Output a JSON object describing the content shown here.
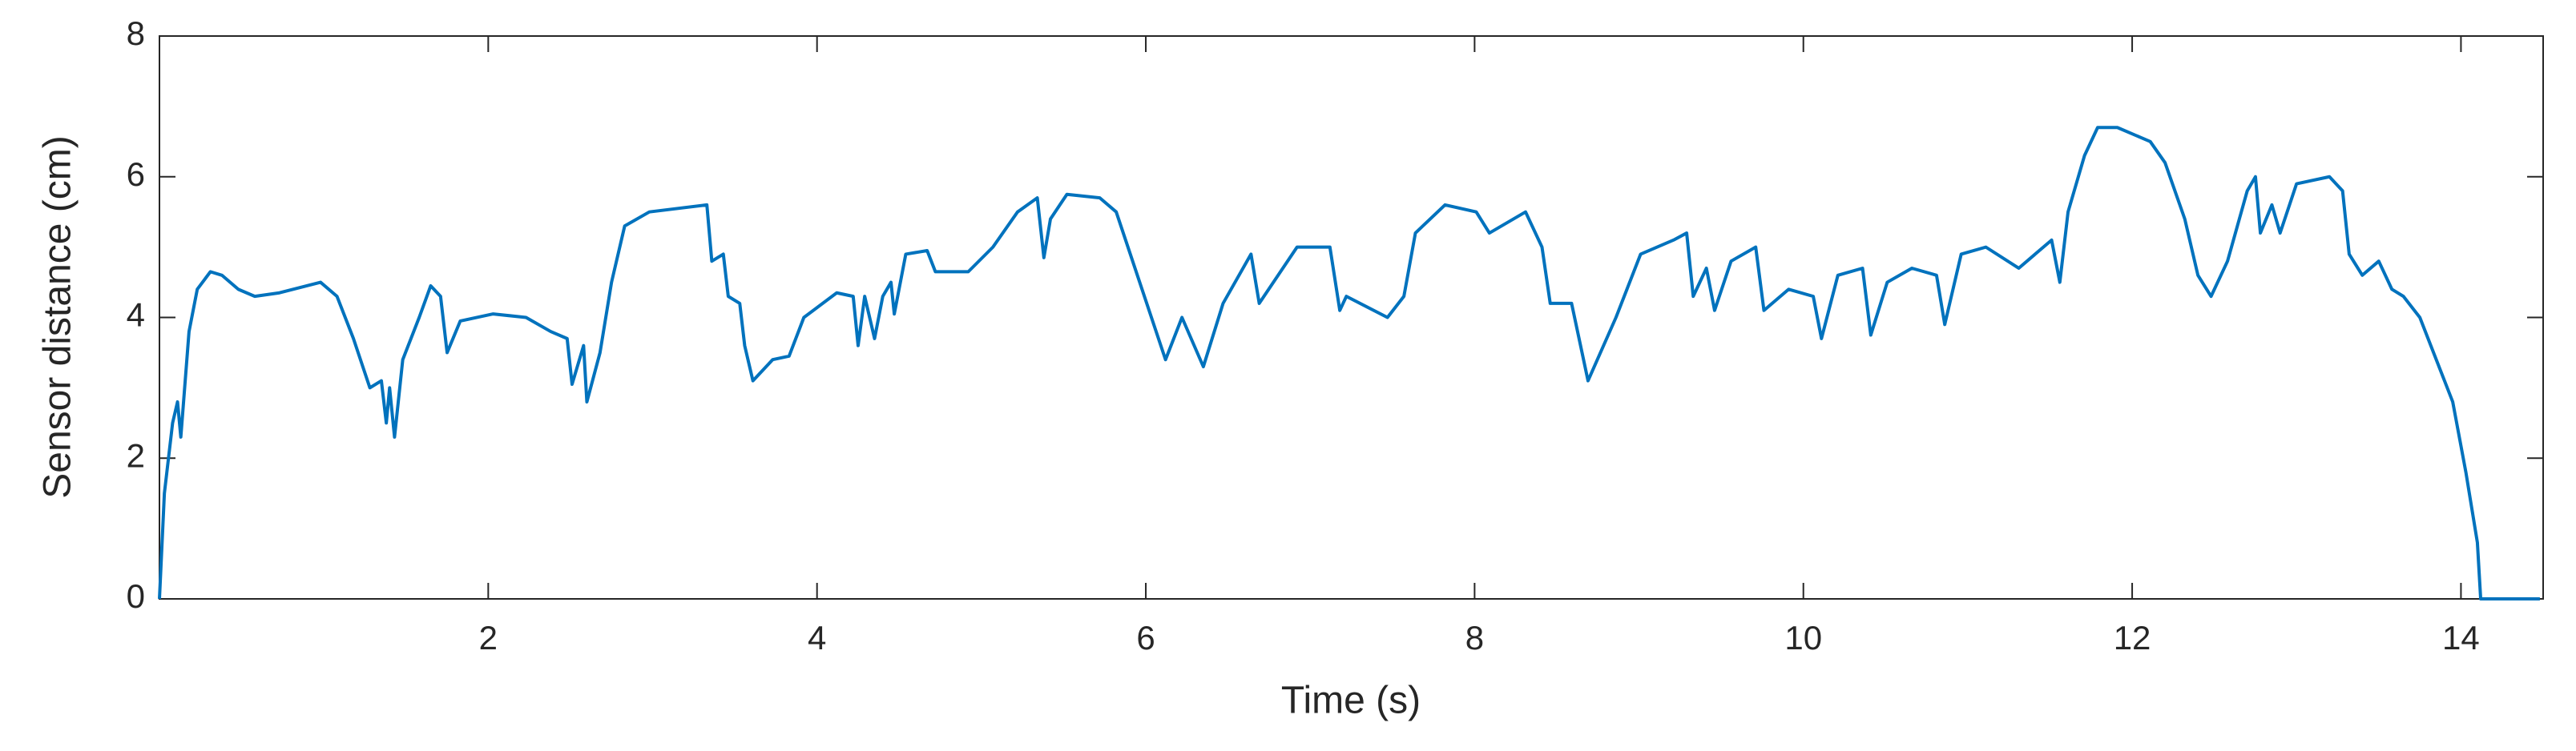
{
  "chart_data": {
    "type": "line",
    "xlabel": "Time (s)",
    "ylabel": "Sensor distance (cm)",
    "x": [
      0.0,
      0.03,
      0.08,
      0.11,
      0.13,
      0.18,
      0.23,
      0.31,
      0.38,
      0.48,
      0.58,
      0.73,
      0.98,
      1.08,
      1.18,
      1.28,
      1.35,
      1.38,
      1.4,
      1.43,
      1.48,
      1.58,
      1.65,
      1.71,
      1.75,
      1.83,
      2.03,
      2.23,
      2.38,
      2.48,
      2.51,
      2.58,
      2.6,
      2.68,
      2.75,
      2.83,
      2.98,
      3.33,
      3.36,
      3.43,
      3.46,
      3.53,
      3.56,
      3.61,
      3.73,
      3.83,
      3.92,
      4.12,
      4.22,
      4.25,
      4.29,
      4.35,
      4.4,
      4.45,
      4.47,
      4.54,
      4.67,
      4.72,
      4.92,
      5.07,
      5.22,
      5.34,
      5.38,
      5.42,
      5.52,
      5.72,
      5.82,
      6.02,
      6.12,
      6.22,
      6.35,
      6.47,
      6.64,
      6.69,
      6.92,
      7.12,
      7.18,
      7.22,
      7.47,
      7.57,
      7.64,
      7.82,
      8.01,
      8.09,
      8.31,
      8.41,
      8.46,
      8.59,
      8.69,
      8.86,
      9.01,
      9.21,
      9.29,
      9.33,
      9.41,
      9.46,
      9.56,
      9.71,
      9.76,
      9.91,
      10.06,
      10.11,
      10.21,
      10.36,
      10.41,
      10.51,
      10.66,
      10.81,
      10.86,
      10.96,
      11.11,
      11.31,
      11.51,
      11.56,
      11.61,
      11.71,
      11.79,
      11.91,
      12.11,
      12.2,
      12.32,
      12.4,
      12.48,
      12.58,
      12.7,
      12.75,
      12.78,
      12.85,
      12.9,
      13.0,
      13.2,
      13.28,
      13.32,
      13.4,
      13.5,
      13.58,
      13.65,
      13.75,
      13.85,
      13.95,
      14.03,
      14.1,
      14.12,
      14.48
    ],
    "series": [
      {
        "color": "#0072bd",
        "values": [
          0,
          1.5,
          2.5,
          2.8,
          2.3,
          3.8,
          4.4,
          4.65,
          4.6,
          4.4,
          4.3,
          4.35,
          4.5,
          4.3,
          3.7,
          3.0,
          3.1,
          2.5,
          3.0,
          2.3,
          3.4,
          4.0,
          4.45,
          4.3,
          3.5,
          3.95,
          4.05,
          4.0,
          3.8,
          3.7,
          3.05,
          3.6,
          2.8,
          3.5,
          4.5,
          5.3,
          5.5,
          5.6,
          4.8,
          4.9,
          4.3,
          4.2,
          3.6,
          3.1,
          3.4,
          3.45,
          4.0,
          4.35,
          4.3,
          3.6,
          4.3,
          3.7,
          4.3,
          4.5,
          4.05,
          4.9,
          4.95,
          4.65,
          4.65,
          5.0,
          5.5,
          5.7,
          4.85,
          5.4,
          5.75,
          5.7,
          5.5,
          4.1,
          3.4,
          4.0,
          3.3,
          4.2,
          4.9,
          4.2,
          5.0,
          5.0,
          4.1,
          4.3,
          4.0,
          4.3,
          5.2,
          5.6,
          5.5,
          5.2,
          5.5,
          5.0,
          4.2,
          4.2,
          3.1,
          4.0,
          4.9,
          5.1,
          5.2,
          4.3,
          4.7,
          4.1,
          4.8,
          5.0,
          4.1,
          4.4,
          4.3,
          3.7,
          4.6,
          4.7,
          3.75,
          4.5,
          4.7,
          4.6,
          3.9,
          4.9,
          5.0,
          4.7,
          5.1,
          4.5,
          5.5,
          6.3,
          6.7,
          6.7,
          6.5,
          6.2,
          5.4,
          4.6,
          4.3,
          4.8,
          5.8,
          6.0,
          5.2,
          5.6,
          5.2,
          5.9,
          6.0,
          5.8,
          4.9,
          4.6,
          4.8,
          4.4,
          4.3,
          4.0,
          3.4,
          2.8,
          1.8,
          0.8,
          0,
          0
        ]
      }
    ],
    "xlim": [
      0,
      14.5
    ],
    "xticks": [
      2,
      4,
      6,
      8,
      10,
      12,
      14
    ],
    "ylim": [
      0,
      8
    ],
    "yticks": [
      0,
      2,
      4,
      6,
      8
    ]
  }
}
